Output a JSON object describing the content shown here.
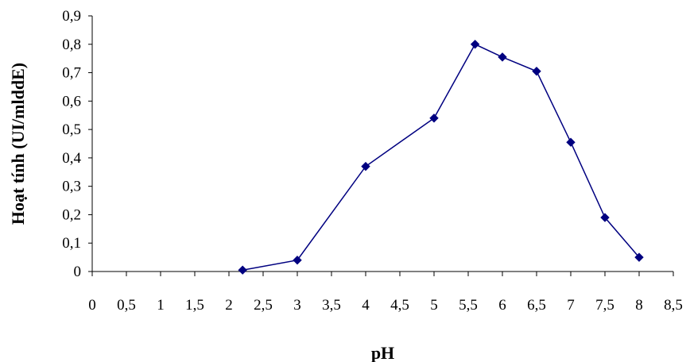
{
  "chart_data": {
    "type": "line",
    "xlabel": "pH",
    "ylabel": "Hoạt tính (UI/mlddE)",
    "xlim": [
      0,
      8.5
    ],
    "ylim": [
      0,
      0.9
    ],
    "x_ticks": [
      "0",
      "0,5",
      "1",
      "1,5",
      "2",
      "2,5",
      "3",
      "3,5",
      "4",
      "4,5",
      "5",
      "5,5",
      "6",
      "6,5",
      "7",
      "7,5",
      "8",
      "8,5"
    ],
    "y_ticks": [
      "0",
      "0,1",
      "0,2",
      "0,3",
      "0,4",
      "0,5",
      "0,6",
      "0,7",
      "0,8",
      "0,9"
    ],
    "grid": false,
    "legend": "none",
    "marker": "diamond",
    "series": [
      {
        "color": "#000080",
        "points": [
          {
            "x": 2.2,
            "y": 0.005
          },
          {
            "x": 3.0,
            "y": 0.04
          },
          {
            "x": 4.0,
            "y": 0.37
          },
          {
            "x": 5.0,
            "y": 0.54
          },
          {
            "x": 5.6,
            "y": 0.8
          },
          {
            "x": 6.0,
            "y": 0.755
          },
          {
            "x": 6.5,
            "y": 0.705
          },
          {
            "x": 7.0,
            "y": 0.455
          },
          {
            "x": 7.5,
            "y": 0.19
          },
          {
            "x": 8.0,
            "y": 0.05
          }
        ]
      }
    ]
  }
}
